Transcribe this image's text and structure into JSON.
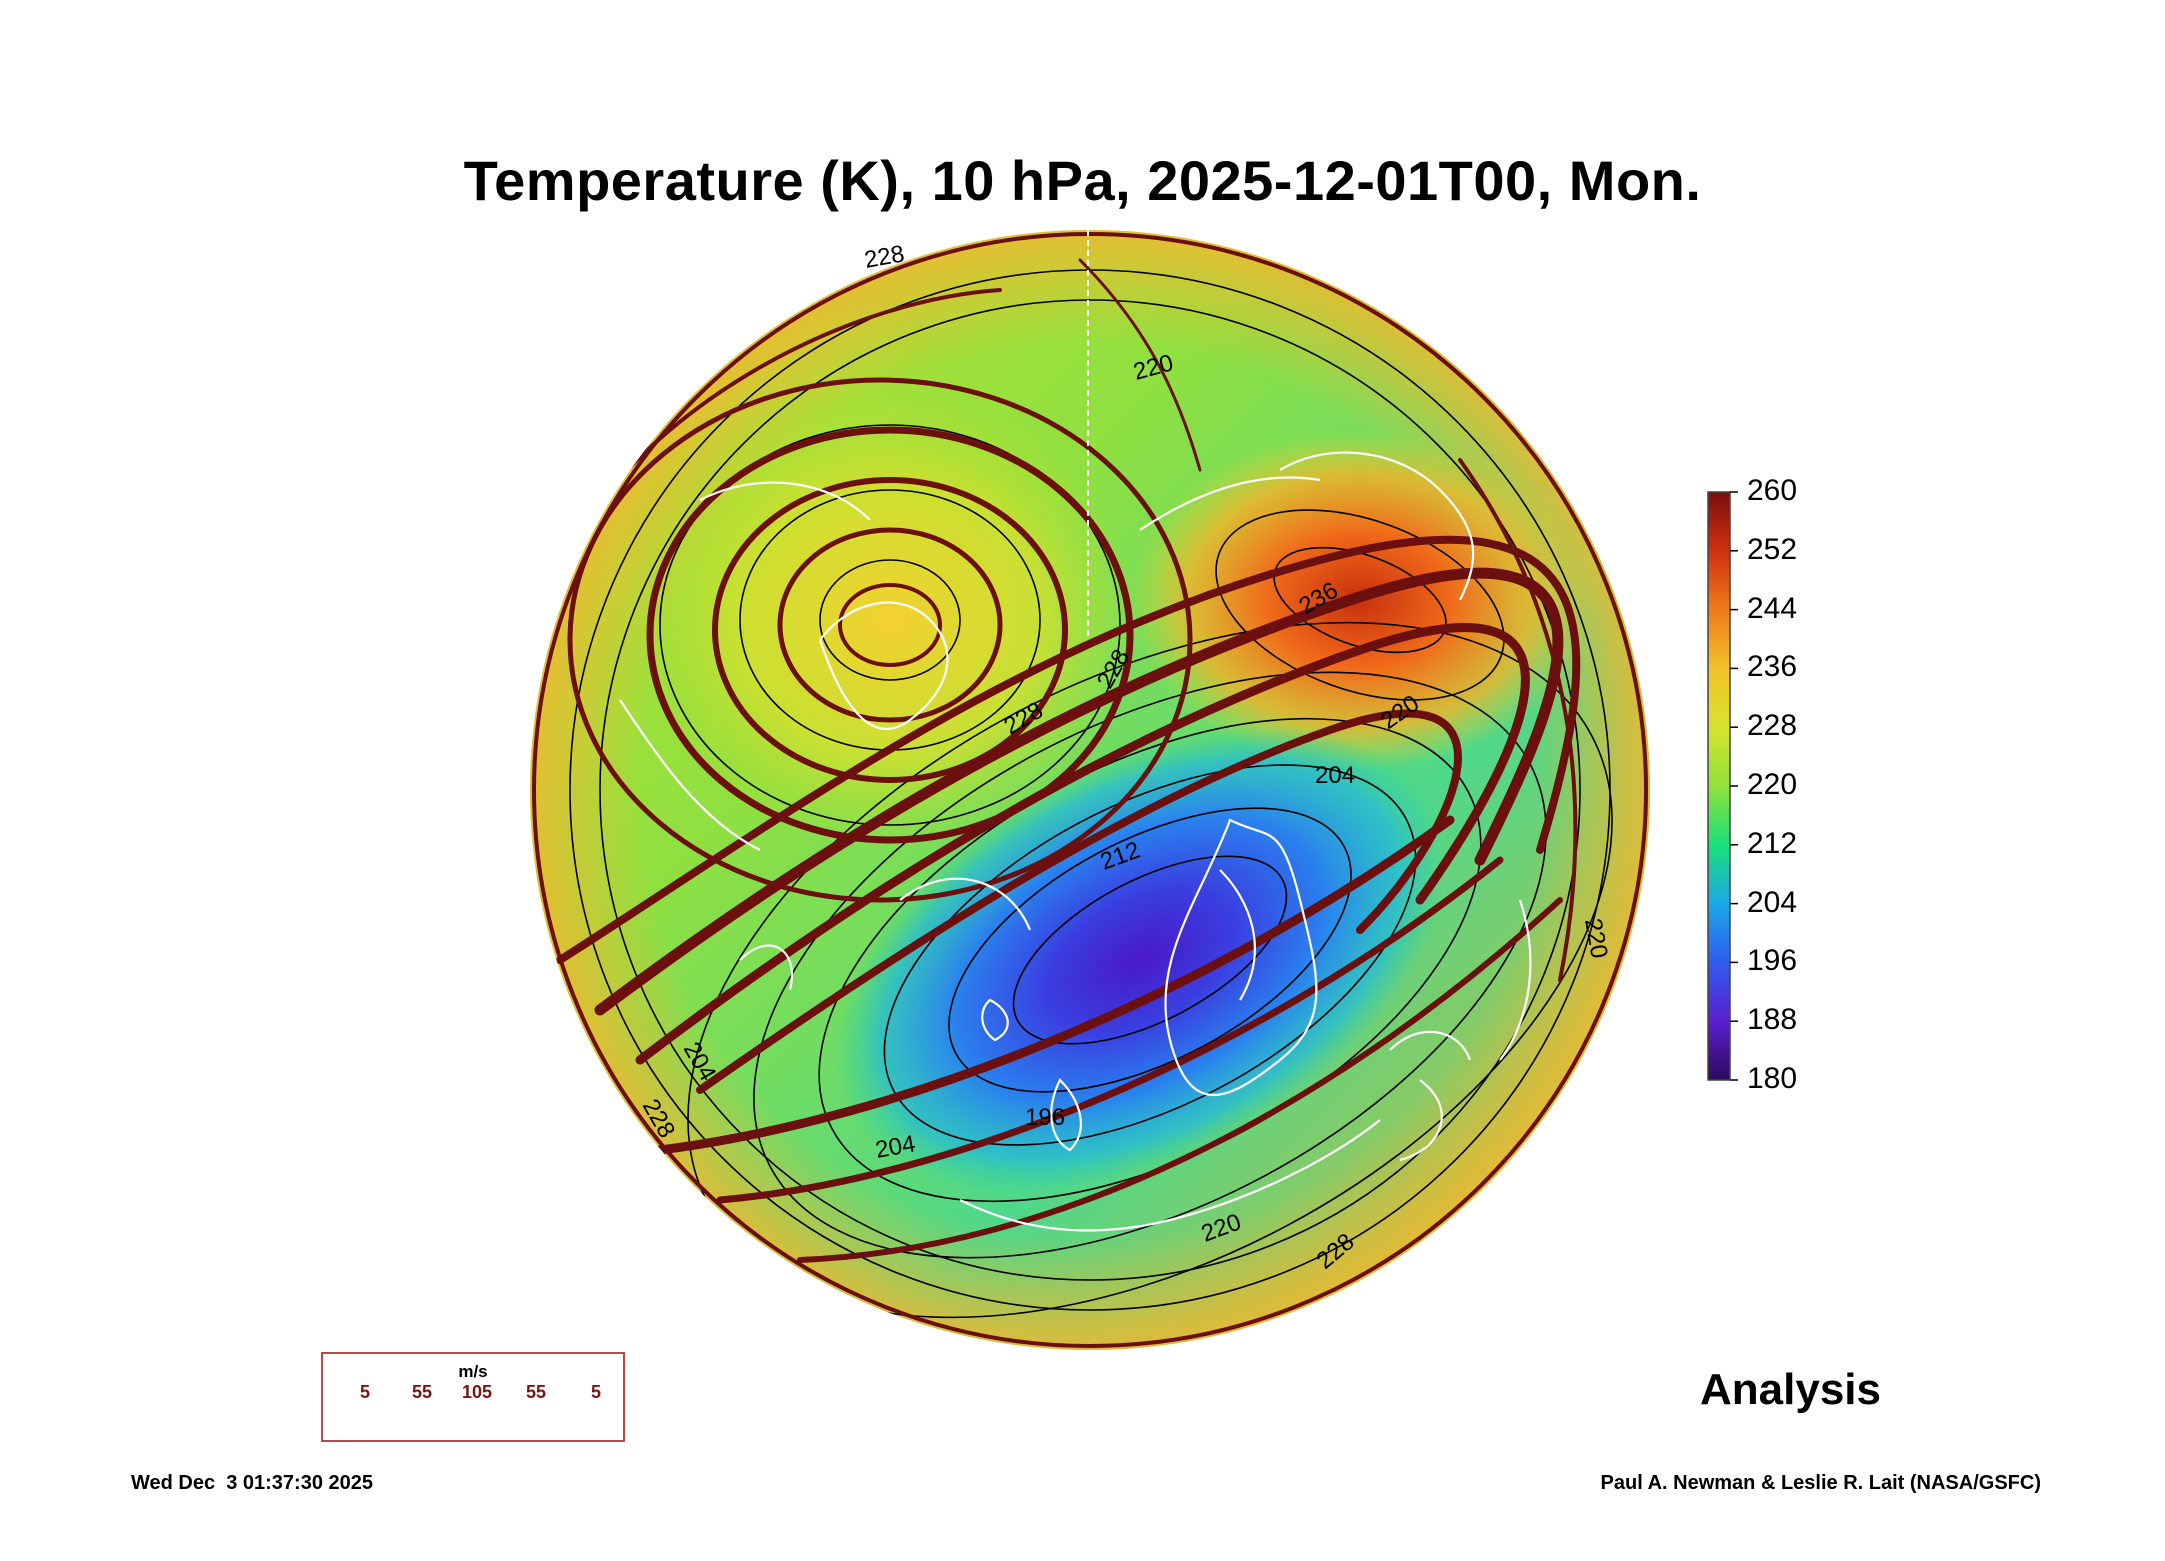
{
  "title": "Temperature (K), 10 hPa, 2025-12-01T00, Mon.",
  "product_label": "Analysis",
  "timestamp": "Wed Dec  3 01:37:30 2025",
  "credit": "Paul A. Newman & Leslie R. Lait (NASA/GSFC)",
  "wind_legend": {
    "unit": "m/s",
    "values": [
      "5",
      "55",
      "105",
      "55",
      "5"
    ]
  },
  "colorbar": {
    "ticks": [
      "260",
      "252",
      "244",
      "236",
      "228",
      "220",
      "212",
      "204",
      "196",
      "188",
      "180"
    ],
    "min": 180,
    "max": 260,
    "colors": [
      "#2e0a5c",
      "#5a1fd0",
      "#2f5cf0",
      "#1aa8e6",
      "#19e07a",
      "#8fe23a",
      "#d7e32c",
      "#f2c22a",
      "#f07a1a",
      "#d0300f",
      "#7a0e0e"
    ]
  },
  "contour_labels": [
    "228",
    "220",
    "228",
    "228",
    "236",
    "220",
    "204",
    "212",
    "204",
    "196",
    "220",
    "228",
    "228",
    "204",
    "220"
  ],
  "colors": {
    "streamline": "#6b0f0f",
    "coast": "#ffffff",
    "contour": "#000000"
  }
}
